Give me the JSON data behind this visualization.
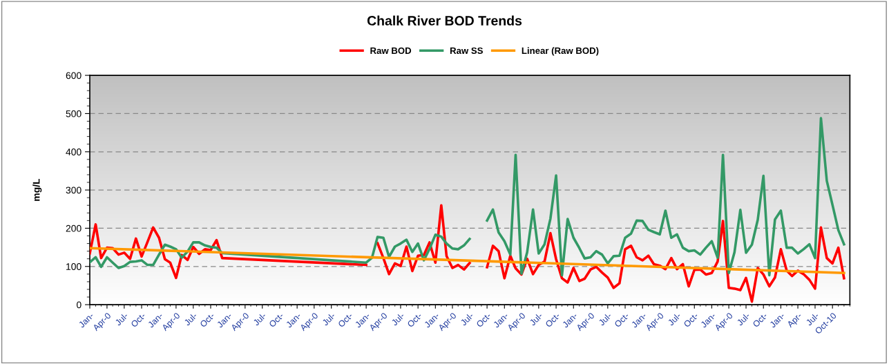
{
  "chart_data": {
    "type": "line",
    "title": "Chalk River BOD Trends",
    "ylabel": "mg/L",
    "x": [
      "2000-01",
      "2000-02",
      "2000-03",
      "2000-04",
      "2000-05",
      "2000-06",
      "2000-07",
      "2000-08",
      "2000-09",
      "2000-10",
      "2000-11",
      "2000-12",
      "2001-01",
      "2001-02",
      "2001-03",
      "2001-04",
      "2001-05",
      "2001-06",
      "2001-07",
      "2001-08",
      "2001-09",
      "2001-10",
      "2001-11",
      "2001-12",
      "2004-01",
      "2004-02",
      "2004-03",
      "2004-04",
      "2004-05",
      "2004-06",
      "2004-07",
      "2004-08",
      "2004-09",
      "2004-10",
      "2004-11",
      "2004-12",
      "2005-01",
      "2005-02",
      "2005-03",
      "2005-04",
      "2005-05",
      "2005-06",
      "2005-07",
      "2005-08",
      "2005-10",
      "2005-11",
      "2005-12",
      "2006-01",
      "2006-02",
      "2006-03",
      "2006-04",
      "2006-05",
      "2006-06",
      "2006-07",
      "2006-08",
      "2006-09",
      "2006-10",
      "2006-11",
      "2006-12",
      "2007-01",
      "2007-02",
      "2007-03",
      "2007-04",
      "2007-05",
      "2007-06",
      "2007-07",
      "2007-08",
      "2007-09",
      "2007-10",
      "2007-11",
      "2007-12",
      "2008-01",
      "2008-02",
      "2008-03",
      "2008-04",
      "2008-05",
      "2008-06",
      "2008-07",
      "2008-08",
      "2008-09",
      "2008-10",
      "2008-11",
      "2008-12",
      "2009-01",
      "2009-02",
      "2009-03",
      "2009-04",
      "2009-05",
      "2009-06",
      "2009-07",
      "2009-08",
      "2009-09",
      "2009-10",
      "2009-11",
      "2009-12",
      "2010-01",
      "2010-02",
      "2010-03",
      "2010-04",
      "2010-05",
      "2010-06",
      "2010-07",
      "2010-08",
      "2010-09",
      "2010-10",
      "2010-11",
      "2010-12"
    ],
    "series": [
      {
        "name": "Raw BOD",
        "color": "#ff0000",
        "values": [
          134,
          210,
          122,
          149,
          148,
          131,
          136,
          120,
          173,
          126,
          164,
          202,
          175,
          119,
          110,
          70,
          130,
          117,
          151,
          133,
          145,
          143,
          169,
          122,
          104,
          null,
          161,
          122,
          80,
          108,
          101,
          152,
          88,
          128,
          130,
          163,
          110,
          260,
          127,
          96,
          104,
          92,
          109,
          null,
          98,
          154,
          140,
          69,
          128,
          95,
          79,
          120,
          80,
          104,
          113,
          187,
          119,
          69,
          58,
          96,
          62,
          68,
          92,
          99,
          84,
          71,
          44,
          56,
          145,
          154,
          124,
          116,
          128,
          106,
          102,
          93,
          122,
          93,
          106,
          48,
          91,
          92,
          79,
          83,
          113,
          219,
          44,
          42,
          38,
          70,
          8,
          96,
          79,
          48,
          71,
          145,
          89,
          75,
          89,
          80,
          65,
          42,
          202,
          122,
          108,
          149,
          69
        ]
      },
      {
        "name": "Raw SS",
        "color": "#339966",
        "values": [
          111,
          124,
          99,
          124,
          110,
          96,
          101,
          112,
          113,
          116,
          104,
          104,
          131,
          157,
          152,
          145,
          123,
          139,
          163,
          163,
          155,
          151,
          149,
          135,
          110,
          123,
          177,
          175,
          125,
          152,
          160,
          170,
          138,
          160,
          116,
          146,
          183,
          178,
          160,
          147,
          145,
          155,
          172,
          null,
          220,
          249,
          189,
          166,
          131,
          392,
          81,
          137,
          249,
          134,
          158,
          225,
          338,
          77,
          224,
          175,
          148,
          121,
          124,
          140,
          131,
          108,
          127,
          128,
          175,
          186,
          220,
          219,
          196,
          190,
          184,
          246,
          175,
          184,
          149,
          140,
          142,
          131,
          149,
          166,
          123,
          392,
          83,
          137,
          248,
          136,
          157,
          222,
          337,
          77,
          223,
          246,
          149,
          149,
          134,
          145,
          158,
          122,
          488,
          324,
          261,
          195,
          158
        ]
      },
      {
        "name": "Linear (Raw BOD)",
        "color": "#ff9900",
        "x": [
          "2000-01",
          "2010-12"
        ],
        "values": [
          148,
          83
        ]
      }
    ],
    "xlim": [
      "2000-01",
      "2011-01"
    ],
    "xticks": [
      {
        "value": "2000-01",
        "label": "Jan-"
      },
      {
        "value": "2000-04",
        "label": "Apr-0"
      },
      {
        "value": "2000-07",
        "label": "Jul-"
      },
      {
        "value": "2000-10",
        "label": "Oct-"
      },
      {
        "value": "2001-01",
        "label": "Jan-"
      },
      {
        "value": "2001-04",
        "label": "Apr-0"
      },
      {
        "value": "2001-07",
        "label": "Jul-"
      },
      {
        "value": "2001-10",
        "label": "Oct-"
      },
      {
        "value": "2002-01",
        "label": "Jan-"
      },
      {
        "value": "2002-04",
        "label": "Apr-0"
      },
      {
        "value": "2002-07",
        "label": "Jul-"
      },
      {
        "value": "2002-10",
        "label": "Oct-"
      },
      {
        "value": "2003-01",
        "label": "Jan-"
      },
      {
        "value": "2003-04",
        "label": "Apr-0"
      },
      {
        "value": "2003-07",
        "label": "Jul-"
      },
      {
        "value": "2003-10",
        "label": "Oct-"
      },
      {
        "value": "2004-01",
        "label": "Jan-"
      },
      {
        "value": "2004-04",
        "label": "Apr-0"
      },
      {
        "value": "2004-07",
        "label": "Jul-"
      },
      {
        "value": "2004-10",
        "label": "Oct-"
      },
      {
        "value": "2005-01",
        "label": "Jan-"
      },
      {
        "value": "2005-04",
        "label": "Apr-0"
      },
      {
        "value": "2005-07",
        "label": "Jul-"
      },
      {
        "value": "2005-10",
        "label": "Oct-"
      },
      {
        "value": "2006-01",
        "label": "Jan-"
      },
      {
        "value": "2006-04",
        "label": "Apr-0"
      },
      {
        "value": "2006-07",
        "label": "Jul-"
      },
      {
        "value": "2006-10",
        "label": "Oct-"
      },
      {
        "value": "2007-01",
        "label": "Jan-"
      },
      {
        "value": "2007-04",
        "label": "Apr-0"
      },
      {
        "value": "2007-07",
        "label": "Jul-"
      },
      {
        "value": "2007-10",
        "label": "Oct-"
      },
      {
        "value": "2008-01",
        "label": "Jan-"
      },
      {
        "value": "2008-04",
        "label": "Apr-0"
      },
      {
        "value": "2008-07",
        "label": "Jul-"
      },
      {
        "value": "2008-10",
        "label": "Oct-"
      },
      {
        "value": "2009-01",
        "label": "Jan-"
      },
      {
        "value": "2009-04",
        "label": "Apr-0"
      },
      {
        "value": "2009-07",
        "label": "Jul-"
      },
      {
        "value": "2009-10",
        "label": "Oct-"
      },
      {
        "value": "2010-01",
        "label": "Jan-"
      },
      {
        "value": "2010-04",
        "label": "Apr-"
      },
      {
        "value": "2010-07",
        "label": "Jul-"
      },
      {
        "value": "2010-10",
        "label": "Oct-10"
      }
    ],
    "ylim": [
      0,
      600
    ],
    "yticks": [
      0,
      100,
      200,
      300,
      400,
      500,
      600
    ],
    "grid": "y",
    "legend": "top",
    "line_style": "solid",
    "marker": "none"
  }
}
